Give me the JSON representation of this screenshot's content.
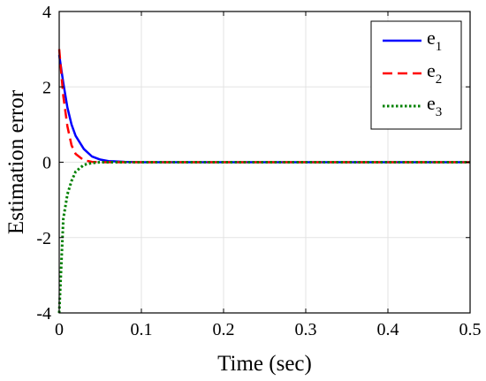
{
  "chart_data": {
    "type": "line",
    "title": "",
    "xlabel": "Time (sec)",
    "ylabel": "Estimation error",
    "xlim": [
      0,
      0.5
    ],
    "ylim": [
      -4,
      4
    ],
    "xticks": [
      0,
      0.1,
      0.2,
      0.3,
      0.4,
      0.5
    ],
    "xtick_labels": [
      "0",
      "0.1",
      "0.2",
      "0.3",
      "0.4",
      "0.5"
    ],
    "yticks": [
      -4,
      -2,
      0,
      2,
      4
    ],
    "ytick_labels": [
      "-4",
      "-2",
      "0",
      "2",
      "4"
    ],
    "grid": true,
    "legend_position": "top-right",
    "x": [
      0,
      0.005,
      0.01,
      0.015,
      0.02,
      0.03,
      0.04,
      0.05,
      0.06,
      0.08,
      0.1,
      0.2,
      0.3,
      0.4,
      0.5
    ],
    "series": [
      {
        "name": "e",
        "subscript": "1",
        "color": "#0000ff",
        "style": "solid",
        "values": [
          2.85,
          2.1,
          1.45,
          1.0,
          0.7,
          0.35,
          0.15,
          0.07,
          0.03,
          0.01,
          0,
          0,
          0,
          0,
          0
        ]
      },
      {
        "name": "e",
        "subscript": "2",
        "color": "#ff0000",
        "style": "dashed",
        "values": [
          3.0,
          1.75,
          0.95,
          0.45,
          0.22,
          0.05,
          0.01,
          0,
          0,
          0,
          0,
          0,
          0,
          0,
          0
        ]
      },
      {
        "name": "e",
        "subscript": "3",
        "color": "#008000",
        "style": "dotted",
        "values": [
          -4.0,
          -1.5,
          -0.85,
          -0.5,
          -0.25,
          -0.07,
          -0.02,
          0,
          0,
          0,
          0,
          0,
          0,
          0,
          0
        ]
      }
    ]
  }
}
